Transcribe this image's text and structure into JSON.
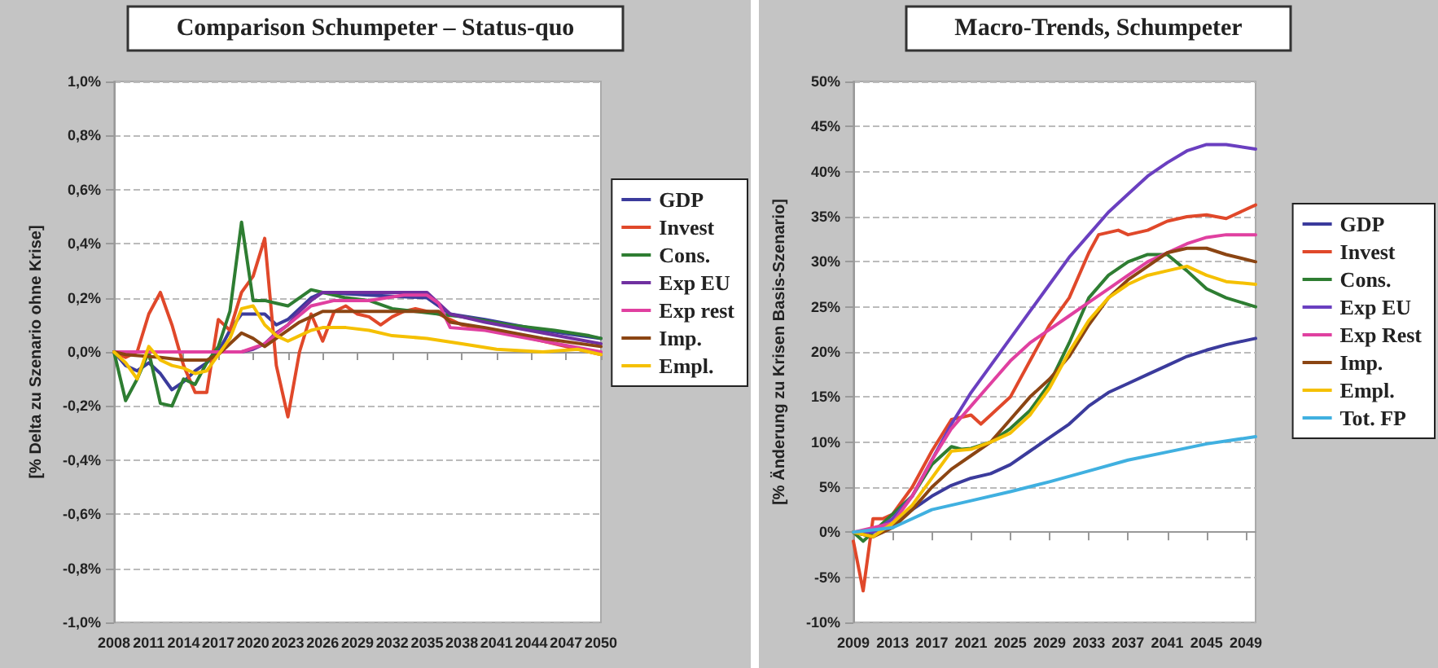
{
  "chart_data": [
    {
      "type": "line",
      "title": "Comparison Schumpeter – Status-quo",
      "ylabel": "[% Delta zu Szenario ohne Krise]",
      "xlim": [
        2008,
        2050
      ],
      "xticks": [
        2008,
        2011,
        2014,
        2017,
        2020,
        2023,
        2026,
        2029,
        2032,
        2035,
        2038,
        2041,
        2044,
        2047,
        2050
      ],
      "ylim": [
        -1.0,
        1.0
      ],
      "yticks": [
        {
          "value": -1.0,
          "label": "-1,0%"
        },
        {
          "value": -0.8,
          "label": "-0,8%"
        },
        {
          "value": -0.6,
          "label": "-0,6%"
        },
        {
          "value": -0.4,
          "label": "-0,4%"
        },
        {
          "value": -0.2,
          "label": "-0,2%"
        },
        {
          "value": 0,
          "label": "0,0%"
        },
        {
          "value": 0.2,
          "label": "0,2%"
        },
        {
          "value": 0.4,
          "label": "0,4%"
        },
        {
          "value": 0.6,
          "label": "0,6%"
        },
        {
          "value": 0.8,
          "label": "0,8%"
        },
        {
          "value": 1.0,
          "label": "1,0%"
        }
      ],
      "grid": "y",
      "legend": "right",
      "line_style": "solid",
      "series": [
        {
          "name": "GDP",
          "color": "#3b3b9c",
          "x": [
            2008,
            2009,
            2010,
            2011,
            2012,
            2013,
            2014,
            2015,
            2016,
            2017,
            2018,
            2019,
            2020,
            2021,
            2022,
            2023,
            2024,
            2025,
            2026,
            2030,
            2035,
            2037,
            2040,
            2045,
            2050
          ],
          "values": [
            0,
            -0.05,
            -0.07,
            -0.04,
            -0.08,
            -0.14,
            -0.11,
            -0.07,
            -0.04,
            0.0,
            0.08,
            0.14,
            0.14,
            0.14,
            0.1,
            0.12,
            0.16,
            0.2,
            0.22,
            0.21,
            0.2,
            0.14,
            0.12,
            0.08,
            0.05
          ]
        },
        {
          "name": "Invest",
          "color": "#e0482a",
          "x": [
            2008,
            2009,
            2010,
            2011,
            2012,
            2013,
            2014,
            2015,
            2016,
            2017,
            2018,
            2019,
            2020,
            2021,
            2022,
            2023,
            2024,
            2025,
            2026,
            2027,
            2028,
            2029,
            2030,
            2031,
            2032,
            2033,
            2034,
            2035,
            2036,
            2038,
            2042,
            2046,
            2050
          ],
          "values": [
            0,
            -0.02,
            0.0,
            0.14,
            0.22,
            0.1,
            -0.05,
            -0.15,
            -0.15,
            0.12,
            0.08,
            0.22,
            0.28,
            0.42,
            -0.05,
            -0.24,
            0.0,
            0.14,
            0.04,
            0.15,
            0.17,
            0.14,
            0.13,
            0.1,
            0.13,
            0.15,
            0.16,
            0.15,
            0.14,
            0.1,
            0.07,
            0.03,
            -0.01
          ]
        },
        {
          "name": "Cons.",
          "color": "#2e7d32",
          "x": [
            2008,
            2009,
            2010,
            2011,
            2012,
            2013,
            2014,
            2015,
            2016,
            2017,
            2018,
            2019,
            2020,
            2021,
            2022,
            2023,
            2024,
            2025,
            2026,
            2028,
            2030,
            2032,
            2034,
            2036,
            2038,
            2042,
            2046,
            2049,
            2050
          ],
          "values": [
            0,
            -0.18,
            -0.1,
            0.0,
            -0.19,
            -0.2,
            -0.1,
            -0.12,
            -0.04,
            0.02,
            0.15,
            0.48,
            0.19,
            0.19,
            0.18,
            0.17,
            0.2,
            0.23,
            0.22,
            0.2,
            0.19,
            0.16,
            0.15,
            0.14,
            0.13,
            0.1,
            0.08,
            0.06,
            0.05
          ]
        },
        {
          "name": "Exp EU",
          "color": "#7030a0",
          "x": [
            2008,
            2018,
            2019,
            2020,
            2021,
            2022,
            2023,
            2024,
            2025,
            2026,
            2028,
            2030,
            2033,
            2035,
            2037,
            2040,
            2045,
            2050
          ],
          "values": [
            0,
            0,
            0,
            0.01,
            0.03,
            0.07,
            0.1,
            0.15,
            0.19,
            0.22,
            0.22,
            0.22,
            0.22,
            0.22,
            0.14,
            0.11,
            0.07,
            0.03
          ]
        },
        {
          "name": "Exp rest",
          "color": "#e040a0",
          "x": [
            2008,
            2019,
            2021,
            2023,
            2025,
            2027,
            2030,
            2033,
            2035,
            2036,
            2037,
            2040,
            2045,
            2050
          ],
          "values": [
            0,
            0,
            0.03,
            0.1,
            0.17,
            0.19,
            0.19,
            0.21,
            0.21,
            0.18,
            0.09,
            0.08,
            0.04,
            0.0
          ]
        },
        {
          "name": "Imp.",
          "color": "#8b4513",
          "x": [
            2008,
            2009,
            2012,
            2014,
            2016,
            2017,
            2018,
            2019,
            2020,
            2021,
            2022,
            2023,
            2024,
            2025,
            2026,
            2030,
            2036,
            2037,
            2040,
            2045,
            2050
          ],
          "values": [
            0,
            -0.01,
            -0.02,
            -0.03,
            -0.03,
            -0.01,
            0.03,
            0.07,
            0.05,
            0.02,
            0.05,
            0.08,
            0.11,
            0.13,
            0.15,
            0.15,
            0.15,
            0.11,
            0.09,
            0.05,
            0.02
          ]
        },
        {
          "name": "Empl.",
          "color": "#f5c000",
          "x": [
            2008,
            2009,
            2010,
            2011,
            2012,
            2013,
            2014,
            2015,
            2016,
            2017,
            2018,
            2019,
            2020,
            2021,
            2022,
            2023,
            2024,
            2025,
            2026,
            2028,
            2030,
            2032,
            2035,
            2038,
            2041,
            2045,
            2048,
            2050
          ],
          "values": [
            0,
            -0.04,
            -0.1,
            0.02,
            -0.03,
            -0.05,
            -0.06,
            -0.08,
            -0.07,
            -0.01,
            0.05,
            0.16,
            0.17,
            0.1,
            0.06,
            0.04,
            0.06,
            0.08,
            0.09,
            0.09,
            0.08,
            0.06,
            0.05,
            0.03,
            0.01,
            0.0,
            0.01,
            -0.01
          ]
        }
      ]
    },
    {
      "type": "line",
      "title": "Macro-Trends, Schumpeter",
      "ylabel": "[% Änderung zu Krisen Basis-Szenario]",
      "xlim": [
        2009,
        2050
      ],
      "xticks": [
        2009,
        2013,
        2017,
        2021,
        2025,
        2029,
        2033,
        2037,
        2041,
        2045,
        2049
      ],
      "ylim": [
        -10,
        50
      ],
      "yticks": [
        {
          "value": -10,
          "label": "-10%"
        },
        {
          "value": -5,
          "label": "-5%"
        },
        {
          "value": 0,
          "label": "0%"
        },
        {
          "value": 5,
          "label": "5%"
        },
        {
          "value": 10,
          "label": "10%"
        },
        {
          "value": 15,
          "label": "15%"
        },
        {
          "value": 20,
          "label": "20%"
        },
        {
          "value": 25,
          "label": "25%"
        },
        {
          "value": 30,
          "label": "30%"
        },
        {
          "value": 35,
          "label": "35%"
        },
        {
          "value": 40,
          "label": "40%"
        },
        {
          "value": 45,
          "label": "45%"
        },
        {
          "value": 50,
          "label": "50%"
        }
      ],
      "grid": "y",
      "legend": "right",
      "line_style": "solid",
      "series": [
        {
          "name": "GDP",
          "color": "#3b3b9c",
          "x": [
            2009,
            2011,
            2013,
            2015,
            2017,
            2019,
            2021,
            2023,
            2025,
            2027,
            2029,
            2031,
            2033,
            2035,
            2037,
            2039,
            2041,
            2043,
            2045,
            2047,
            2050
          ],
          "values": [
            0,
            -0.5,
            1,
            2.5,
            4,
            5.2,
            6,
            6.5,
            7.5,
            9,
            10.5,
            12,
            14,
            15.5,
            16.5,
            17.5,
            18.5,
            19.5,
            20.2,
            20.8,
            21.5
          ]
        },
        {
          "name": "Invest",
          "color": "#e0482a",
          "x": [
            2009,
            2010,
            2011,
            2012,
            2013,
            2015,
            2017,
            2019,
            2021,
            2022,
            2023,
            2025,
            2027,
            2029,
            2031,
            2033,
            2034,
            2036,
            2037,
            2039,
            2041,
            2043,
            2045,
            2047,
            2050
          ],
          "values": [
            -1,
            -6.5,
            1.5,
            1.5,
            2,
            5,
            9,
            12.5,
            13,
            12,
            13,
            15,
            19,
            23,
            26,
            31,
            33,
            33.5,
            33,
            33.5,
            34.5,
            35,
            35.2,
            34.8,
            36.3
          ]
        },
        {
          "name": "Cons.",
          "color": "#2e7d32",
          "x": [
            2009,
            2010,
            2011,
            2013,
            2015,
            2017,
            2019,
            2020,
            2021,
            2023,
            2025,
            2027,
            2029,
            2031,
            2033,
            2035,
            2037,
            2039,
            2041,
            2043,
            2045,
            2047,
            2050
          ],
          "values": [
            0,
            -1,
            0,
            2,
            4,
            7.5,
            9.5,
            9.2,
            9.3,
            10,
            11.5,
            13.5,
            16.5,
            21,
            26,
            28.5,
            30,
            30.8,
            30.8,
            29,
            27,
            26,
            25
          ]
        },
        {
          "name": "Exp EU",
          "color": "#6a3fc0",
          "x": [
            2009,
            2011,
            2013,
            2015,
            2017,
            2019,
            2021,
            2023,
            2025,
            2027,
            2029,
            2031,
            2033,
            2035,
            2037,
            2039,
            2041,
            2043,
            2045,
            2047,
            2050
          ],
          "values": [
            0,
            0,
            1.5,
            4,
            8,
            12,
            15.5,
            18.5,
            21.5,
            24.5,
            27.5,
            30.5,
            33,
            35.5,
            37.5,
            39.5,
            41,
            42.3,
            43,
            43,
            42.5
          ]
        },
        {
          "name": "Exp Rest",
          "color": "#e040a0",
          "x": [
            2009,
            2013,
            2015,
            2017,
            2019,
            2021,
            2023,
            2025,
            2027,
            2029,
            2031,
            2033,
            2035,
            2037,
            2039,
            2041,
            2043,
            2045,
            2047,
            2050
          ],
          "values": [
            0,
            1,
            4,
            8,
            11.5,
            14,
            16.5,
            19,
            21,
            22.5,
            24,
            25.5,
            27,
            28.5,
            30,
            31,
            32,
            32.7,
            33,
            33
          ]
        },
        {
          "name": "Imp.",
          "color": "#8b4513",
          "x": [
            2009,
            2011,
            2013,
            2015,
            2017,
            2019,
            2021,
            2023,
            2025,
            2027,
            2029,
            2031,
            2033,
            2035,
            2037,
            2039,
            2041,
            2043,
            2045,
            2047,
            2050
          ],
          "values": [
            0,
            -0.5,
            0.5,
            2.5,
            5,
            7,
            8.5,
            10,
            12.5,
            15,
            17,
            19.5,
            23,
            26,
            28,
            29.5,
            31,
            31.5,
            31.5,
            30.8,
            30
          ]
        },
        {
          "name": "Empl.",
          "color": "#f5c000",
          "x": [
            2009,
            2011,
            2013,
            2015,
            2017,
            2019,
            2021,
            2023,
            2025,
            2027,
            2029,
            2031,
            2033,
            2035,
            2037,
            2039,
            2041,
            2043,
            2045,
            2047,
            2050
          ],
          "values": [
            0,
            -0.5,
            1,
            3,
            6,
            9,
            9.2,
            10,
            11,
            13,
            16,
            20,
            23.5,
            26,
            27.5,
            28.5,
            29,
            29.5,
            28.5,
            27.8,
            27.5
          ]
        },
        {
          "name": "Tot. FP",
          "color": "#40b0e0",
          "x": [
            2009,
            2013,
            2015,
            2017,
            2021,
            2025,
            2029,
            2033,
            2037,
            2041,
            2045,
            2050
          ],
          "values": [
            0,
            0.5,
            1.5,
            2.5,
            3.5,
            4.5,
            5.6,
            6.8,
            8,
            8.9,
            9.8,
            10.6
          ]
        }
      ]
    }
  ]
}
